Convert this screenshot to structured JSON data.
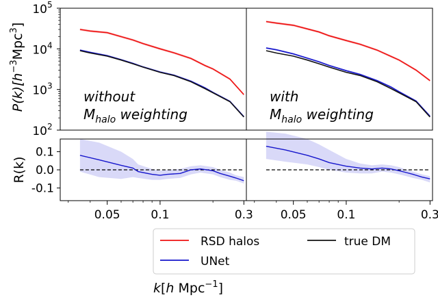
{
  "chart_data": {
    "type": "line",
    "x_scale": "log",
    "x_ticks": [
      {
        "value": 0.05,
        "label": "0.05"
      },
      {
        "value": 0.1,
        "label": "0.1"
      },
      {
        "value": 0.3,
        "label": "0.3"
      }
    ],
    "x_range": [
      0.027,
      0.31
    ],
    "xlabel": {
      "base": "k[h Mpc",
      "sup": "−1",
      "tail": "]"
    },
    "top_panel": {
      "y_scale": "log",
      "ylim": [
        100,
        100000
      ],
      "ylabel": {
        "base": "P(k)[h",
        "sup1": "−3",
        "mid": "Mpc",
        "sup2": "3",
        "tail": "]"
      },
      "y_ticks": [
        {
          "value": 100,
          "base": "10",
          "exp": "2"
        },
        {
          "value": 1000,
          "base": "10",
          "exp": "3"
        },
        {
          "value": 10000,
          "base": "10",
          "exp": "4"
        },
        {
          "value": 100000,
          "base": "10",
          "exp": "5"
        }
      ]
    },
    "bottom_panel": {
      "ylabel": "R(k)",
      "ylim": [
        -0.17,
        0.17
      ],
      "y_ticks": [
        {
          "value": 0.1,
          "label": "0.1"
        },
        {
          "value": 0.0,
          "label": "0.0"
        },
        {
          "value": -0.1,
          "label": "-0.1"
        }
      ],
      "reference_line": 0.0
    },
    "panels": [
      {
        "annotation": {
          "line1": "without",
          "line2_main": "M",
          "line2_sub": "halo",
          "line2_tail": " weighting"
        },
        "k": [
          0.035,
          0.04,
          0.05,
          0.06,
          0.07,
          0.08,
          0.1,
          0.12,
          0.15,
          0.18,
          0.2,
          0.25,
          0.3
        ],
        "rsd_halos": [
          30000,
          27500,
          25000,
          20000,
          16500,
          13500,
          10000,
          8000,
          5800,
          3900,
          3200,
          1800,
          750
        ],
        "unet": [
          9300,
          8200,
          6800,
          5400,
          4400,
          3600,
          2700,
          2250,
          1600,
          1100,
          850,
          510,
          215
        ],
        "true_dm": [
          9000,
          7900,
          6600,
          5300,
          4300,
          3550,
          2650,
          2200,
          1550,
          1050,
          830,
          500,
          210
        ],
        "ratio": {
          "k": [
            0.035,
            0.045,
            0.06,
            0.07,
            0.075,
            0.09,
            0.1,
            0.11,
            0.13,
            0.15,
            0.17,
            0.2,
            0.22,
            0.25,
            0.27,
            0.3
          ],
          "mean": [
            0.08,
            0.055,
            0.025,
            0.01,
            -0.01,
            -0.025,
            -0.03,
            -0.025,
            -0.02,
            0.0,
            0.005,
            -0.005,
            -0.02,
            -0.035,
            -0.045,
            -0.06
          ],
          "upper": [
            0.17,
            0.15,
            0.1,
            0.06,
            0.03,
            0.005,
            -0.005,
            0.0,
            0.005,
            0.02,
            0.025,
            0.015,
            0.0,
            -0.015,
            -0.03,
            -0.04
          ],
          "lower": [
            -0.01,
            -0.04,
            -0.05,
            -0.04,
            -0.045,
            -0.055,
            -0.055,
            -0.05,
            -0.045,
            -0.025,
            -0.015,
            -0.025,
            -0.04,
            -0.055,
            -0.06,
            -0.075
          ]
        }
      },
      {
        "annotation": {
          "line1": "with",
          "line2_main": "M",
          "line2_sub": "halo",
          "line2_tail": " weighting"
        },
        "k": [
          0.035,
          0.04,
          0.05,
          0.06,
          0.07,
          0.08,
          0.1,
          0.12,
          0.15,
          0.18,
          0.2,
          0.25,
          0.3
        ],
        "rsd_halos": [
          47000,
          43000,
          38000,
          31000,
          26000,
          21000,
          16000,
          13000,
          9300,
          6500,
          5300,
          3000,
          1650
        ],
        "unet": [
          10500,
          9500,
          7500,
          5900,
          4800,
          3900,
          2900,
          2350,
          1650,
          1150,
          880,
          520,
          220
        ],
        "true_dm": [
          9000,
          7900,
          6600,
          5300,
          4300,
          3550,
          2650,
          2200,
          1550,
          1050,
          830,
          500,
          210
        ],
        "ratio": {
          "k": [
            0.035,
            0.045,
            0.06,
            0.07,
            0.08,
            0.1,
            0.12,
            0.14,
            0.16,
            0.18,
            0.2,
            0.22,
            0.24,
            0.27,
            0.3
          ],
          "mean": [
            0.13,
            0.11,
            0.08,
            0.06,
            0.04,
            0.02,
            0.01,
            0.005,
            0.01,
            0.005,
            -0.005,
            -0.015,
            -0.025,
            -0.04,
            -0.05
          ],
          "upper": [
            0.21,
            0.2,
            0.17,
            0.14,
            0.11,
            0.06,
            0.035,
            0.025,
            0.03,
            0.025,
            0.015,
            0.0,
            -0.01,
            -0.025,
            -0.035
          ],
          "lower": [
            0.06,
            0.045,
            0.03,
            0.015,
            0.0,
            -0.015,
            -0.02,
            -0.02,
            -0.01,
            -0.015,
            -0.025,
            -0.035,
            -0.045,
            -0.055,
            -0.07
          ]
        }
      }
    ],
    "series": [
      {
        "key": "rsd_halos",
        "name": "RSD halos",
        "color": "#ee1111"
      },
      {
        "key": "unet",
        "name": "UNet",
        "color": "#1515cc"
      },
      {
        "key": "true_dm",
        "name": "true DM",
        "color": "#111111"
      }
    ],
    "band_colors": {
      "rsd_halos": "#f7b3b3",
      "unet": "#c9c9f5"
    },
    "legend_placement": "bottom-center"
  }
}
